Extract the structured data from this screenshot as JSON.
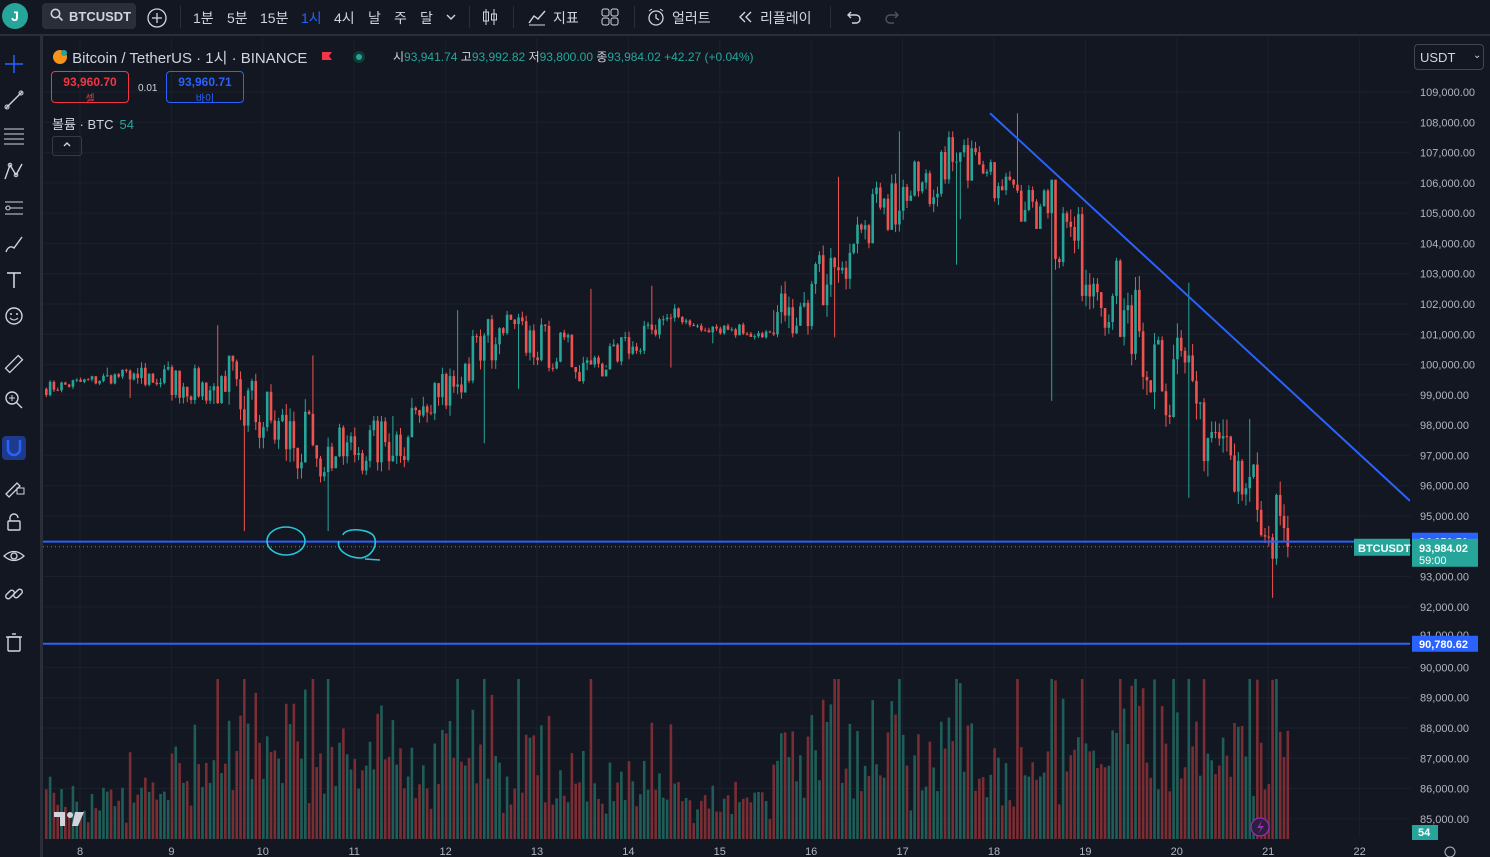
{
  "user": {
    "initial": "J"
  },
  "toolbar": {
    "symbol": "BTCUSDT",
    "intervals": [
      "1분",
      "5분",
      "15분",
      "1시",
      "4시",
      "날",
      "주",
      "달"
    ],
    "active_interval": "1시",
    "indicators_label": "지표",
    "alerts_label": "얼러트",
    "replay_label": "리플레이"
  },
  "legend": {
    "title": "Bitcoin / TetherUS · 1시 · BINANCE",
    "open_label": "시",
    "open": "93,941.74",
    "high_label": "고",
    "high": "93,992.82",
    "low_label": "저",
    "low": "93,800.00",
    "close_label": "종",
    "close": "93,984.02",
    "change": "+42.27 (+0.04%)"
  },
  "trade": {
    "sell_price": "93,960.70",
    "sell_label": "셀",
    "spread": "0.01",
    "buy_price": "93,960.71",
    "buy_label": "바이"
  },
  "volume_legend": {
    "label": "볼륨 · BTC",
    "value": "54"
  },
  "currency": "USDT",
  "price_axis": {
    "ticks": [
      109000,
      108000,
      107000,
      106000,
      105000,
      104000,
      103000,
      102000,
      101000,
      100000,
      99000,
      98000,
      97000,
      96000,
      95000,
      93000,
      92000,
      90000,
      89000,
      88000,
      87000,
      86000,
      85000
    ],
    "labels": [
      "109,000.00",
      "108,000.00",
      "107,000.00",
      "106,000.00",
      "105,000.00",
      "104,000.00",
      "103,000.00",
      "102,000.00",
      "101,000.00",
      "100,000.00",
      "99,000.00",
      "98,000.00",
      "97,000.00",
      "96,000.00",
      "95,000.00",
      "93,000.00",
      "92,000.00",
      "90,000.00",
      "89,000.00",
      "88,000.00",
      "87,000.00",
      "86,000.00",
      "85,000.00"
    ]
  },
  "price_marks": {
    "line_upper": {
      "value": 94151.51,
      "label": "94,151.51"
    },
    "line_lower": {
      "value": 90780.62,
      "label": "90,780.62"
    },
    "current": {
      "value": 93984.02,
      "label": "93,984.02",
      "countdown": "59:00",
      "tag": "BTCUSDT"
    },
    "partial_tick": "91,000.00",
    "volume_badge": "54"
  },
  "time_axis": {
    "labels": [
      "8",
      "9",
      "10",
      "11",
      "12",
      "13",
      "14",
      "15",
      "16",
      "17",
      "18",
      "19",
      "20",
      "21",
      "22"
    ]
  },
  "trendline": {
    "from_date": "18",
    "from_price": 108300,
    "to_date": "21 (+15h)",
    "to_price": 95500
  },
  "chart_data": {
    "type": "candlestick",
    "symbol": "BTCUSDT",
    "interval": "1h",
    "series_daily_approx": [
      {
        "date": "8",
        "open": 99200,
        "high": 99900,
        "low": 98900,
        "close": 99700
      },
      {
        "date": "9",
        "open": 99700,
        "high": 101300,
        "low": 98700,
        "close": 99100
      },
      {
        "date": "10",
        "open": 99100,
        "high": 100300,
        "low": 94500,
        "close": 96900
      },
      {
        "date": "11",
        "open": 96900,
        "high": 98300,
        "low": 94500,
        "close": 97600
      },
      {
        "date": "12",
        "open": 97600,
        "high": 101800,
        "low": 97400,
        "close": 101200
      },
      {
        "date": "13",
        "open": 101200,
        "high": 102500,
        "low": 99200,
        "close": 100000
      },
      {
        "date": "14",
        "open": 100000,
        "high": 102600,
        "low": 99900,
        "close": 101400
      },
      {
        "date": "15",
        "open": 101400,
        "high": 101800,
        "low": 100700,
        "close": 101000
      },
      {
        "date": "16",
        "open": 101000,
        "high": 106200,
        "low": 100900,
        "close": 104600
      },
      {
        "date": "17",
        "open": 104600,
        "high": 107700,
        "low": 103300,
        "close": 106700
      },
      {
        "date": "18",
        "open": 106700,
        "high": 108300,
        "low": 104800,
        "close": 105000
      },
      {
        "date": "19",
        "open": 105000,
        "high": 105200,
        "low": 98800,
        "close": 101100
      },
      {
        "date": "20",
        "open": 101100,
        "high": 102700,
        "low": 95600,
        "close": 97000
      },
      {
        "date": "21",
        "open": 97000,
        "high": 98200,
        "low": 92300,
        "close": 93984
      }
    ],
    "horizontal_lines": [
      94151.51,
      90780.62
    ],
    "ylim": [
      84500,
      110000
    ],
    "colors": {
      "up": "#26a69a",
      "down": "#ef5350",
      "lines": "#2962ff",
      "annotation": "#26c6da"
    }
  }
}
